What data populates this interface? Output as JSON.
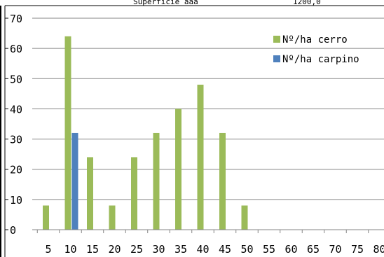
{
  "header_fragment": {
    "left_text": "Superficie aaa",
    "right_text": "1200,0"
  },
  "chart_data": {
    "type": "bar",
    "categories": [
      "5",
      "10",
      "15",
      "20",
      "25",
      "30",
      "35",
      "40",
      "45",
      "50",
      "55",
      "60",
      "65",
      "70",
      "75",
      "80"
    ],
    "series": [
      {
        "name": "Nº/ha cerro",
        "color": "#9bbb59",
        "values": [
          8,
          64,
          24,
          8,
          24,
          32,
          40,
          48,
          32,
          8,
          0,
          0,
          0,
          0,
          0,
          0
        ]
      },
      {
        "name": "Nº/ha carpino",
        "color": "#4f81bd",
        "values": [
          0,
          32,
          0,
          0,
          0,
          0,
          0,
          0,
          0,
          0,
          0,
          0,
          0,
          0,
          0,
          0
        ]
      }
    ],
    "y_ticks": [
      "0",
      "10",
      "20",
      "30",
      "40",
      "50",
      "60",
      "70"
    ],
    "ylim": [
      0,
      70
    ],
    "grid": true,
    "legend_position": "top-right",
    "title": "",
    "xlabel": "",
    "ylabel": ""
  }
}
